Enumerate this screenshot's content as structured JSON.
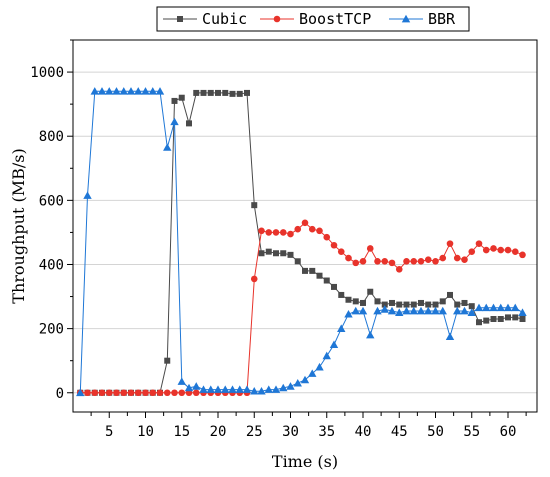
{
  "chart_data": {
    "type": "line",
    "title": "",
    "xlabel": "Time (s)",
    "ylabel": "Throughput (MB/s)",
    "xlim": [
      0,
      64
    ],
    "ylim": [
      -60,
      1100
    ],
    "x_ticks": [
      5,
      10,
      15,
      20,
      25,
      30,
      35,
      40,
      45,
      50,
      55,
      60
    ],
    "y_ticks": [
      0,
      200,
      400,
      600,
      800,
      1000
    ],
    "grid": "horizontal",
    "legend_position": "top",
    "series": [
      {
        "name": "Cubic",
        "color": "#4a4a4a",
        "marker": "square",
        "x": [
          1,
          2,
          3,
          4,
          5,
          6,
          7,
          8,
          9,
          10,
          11,
          12,
          13,
          14,
          15,
          16,
          17,
          18,
          19,
          20,
          21,
          22,
          23,
          24,
          25,
          26,
          27,
          28,
          29,
          30,
          31,
          32,
          33,
          34,
          35,
          36,
          37,
          38,
          39,
          40,
          41,
          42,
          43,
          44,
          45,
          46,
          47,
          48,
          49,
          50,
          51,
          52,
          53,
          54,
          55,
          56,
          57,
          58,
          59,
          60,
          61,
          62
        ],
        "values": [
          0,
          0,
          0,
          0,
          0,
          0,
          0,
          0,
          0,
          0,
          0,
          0,
          100,
          910,
          920,
          840,
          935,
          935,
          935,
          935,
          935,
          932,
          932,
          935,
          585,
          435,
          440,
          435,
          435,
          430,
          410,
          380,
          380,
          365,
          350,
          330,
          305,
          290,
          285,
          280,
          315,
          285,
          275,
          280,
          275,
          275,
          275,
          280,
          275,
          275,
          285,
          305,
          275,
          280,
          270,
          220,
          225,
          230,
          230,
          235,
          235,
          230
        ]
      },
      {
        "name": "BoostTCP",
        "color": "#e8332b",
        "marker": "circle",
        "x": [
          1,
          2,
          3,
          4,
          5,
          6,
          7,
          8,
          9,
          10,
          11,
          12,
          13,
          14,
          15,
          16,
          17,
          18,
          19,
          20,
          21,
          22,
          23,
          24,
          25,
          26,
          27,
          28,
          29,
          30,
          31,
          32,
          33,
          34,
          35,
          36,
          37,
          38,
          39,
          40,
          41,
          42,
          43,
          44,
          45,
          46,
          47,
          48,
          49,
          50,
          51,
          52,
          53,
          54,
          55,
          56,
          57,
          58,
          59,
          60,
          61,
          62
        ],
        "values": [
          0,
          0,
          0,
          0,
          0,
          0,
          0,
          0,
          0,
          0,
          0,
          0,
          0,
          0,
          0,
          0,
          0,
          0,
          0,
          0,
          0,
          0,
          0,
          0,
          355,
          505,
          500,
          500,
          500,
          495,
          510,
          530,
          510,
          505,
          485,
          460,
          440,
          420,
          405,
          410,
          450,
          410,
          410,
          405,
          385,
          410,
          410,
          410,
          415,
          410,
          420,
          465,
          420,
          415,
          440,
          465,
          445,
          450,
          445,
          445,
          440,
          430
        ]
      },
      {
        "name": "BBR",
        "color": "#1f77d6",
        "marker": "triangle",
        "x": [
          1,
          2,
          3,
          4,
          5,
          6,
          7,
          8,
          9,
          10,
          11,
          12,
          13,
          14,
          15,
          16,
          17,
          18,
          19,
          20,
          21,
          22,
          23,
          24,
          25,
          26,
          27,
          28,
          29,
          30,
          31,
          32,
          33,
          34,
          35,
          36,
          37,
          38,
          39,
          40,
          41,
          42,
          43,
          44,
          45,
          46,
          47,
          48,
          49,
          50,
          51,
          52,
          53,
          54,
          55,
          56,
          57,
          58,
          59,
          60,
          61,
          62
        ],
        "values": [
          0,
          615,
          940,
          940,
          940,
          940,
          940,
          940,
          940,
          940,
          940,
          940,
          765,
          845,
          35,
          15,
          20,
          10,
          10,
          10,
          10,
          10,
          10,
          10,
          5,
          5,
          10,
          10,
          15,
          20,
          30,
          40,
          60,
          80,
          115,
          150,
          200,
          245,
          255,
          255,
          180,
          255,
          260,
          255,
          250,
          255,
          255,
          255,
          255,
          255,
          255,
          175,
          255,
          255,
          250,
          265,
          265,
          265,
          265,
          265,
          265,
          250
        ]
      }
    ]
  }
}
